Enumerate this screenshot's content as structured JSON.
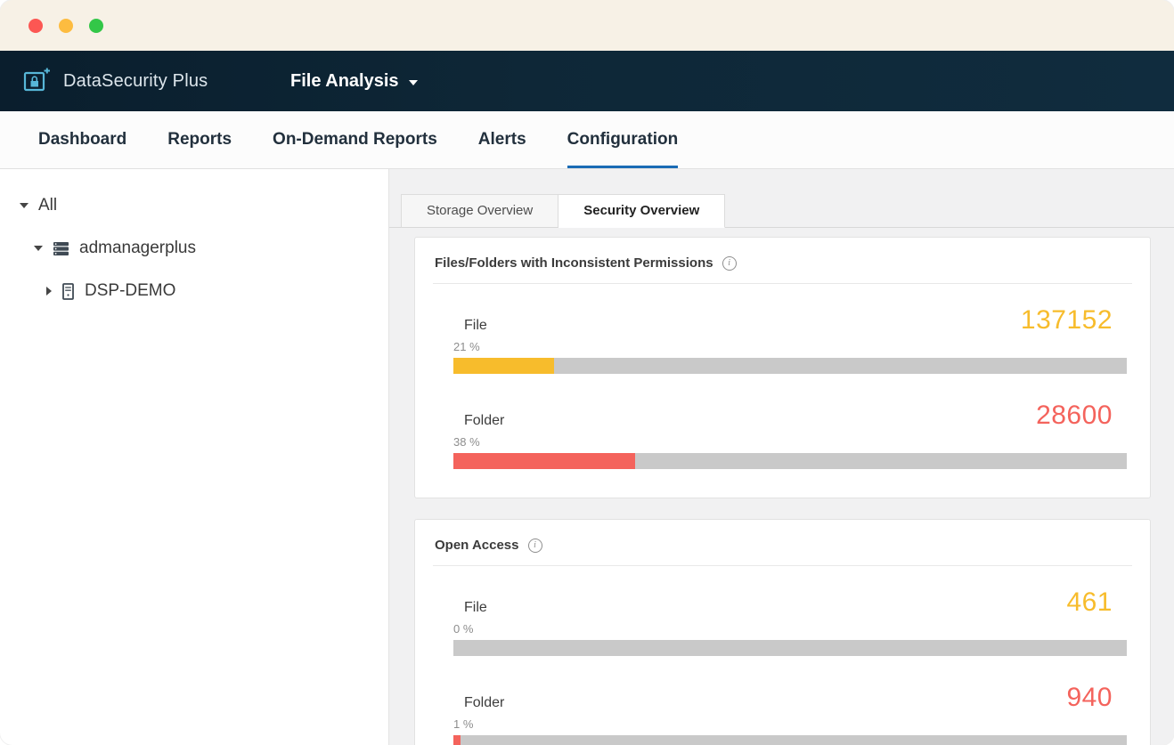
{
  "window": {
    "traffic_lights": {
      "close": "#fc5753",
      "minimize": "#fdbc40",
      "zoom": "#33c748"
    }
  },
  "header": {
    "brand": "DataSecurity Plus",
    "module_selector": "File Analysis"
  },
  "nav": {
    "items": [
      {
        "label": "Dashboard"
      },
      {
        "label": "Reports"
      },
      {
        "label": "On-Demand Reports"
      },
      {
        "label": "Alerts"
      },
      {
        "label": "Configuration"
      }
    ],
    "active": "Configuration",
    "active_underline_color": "#1a6bb5"
  },
  "sidebar": {
    "tree": [
      {
        "label": "All",
        "expanded": true
      },
      {
        "label": "admanagerplus",
        "expanded": true,
        "icon": "server-stack-icon"
      },
      {
        "label": "DSP-DEMO",
        "expanded": false,
        "icon": "server-tower-icon"
      }
    ]
  },
  "content": {
    "tabs": [
      {
        "label": "Storage Overview"
      },
      {
        "label": "Security Overview"
      }
    ],
    "active_tab": "Security Overview",
    "cards": [
      {
        "title": "Files/Folders with Inconsistent Permissions",
        "rows": [
          {
            "label": "File",
            "value": "137152",
            "percent": "21 %",
            "bar_pct": 15,
            "color": "#f7bc2c"
          },
          {
            "label": "Folder",
            "value": "28600",
            "percent": "38 %",
            "bar_pct": 27,
            "color": "#f4635c"
          }
        ]
      },
      {
        "title": "Open Access",
        "rows": [
          {
            "label": "File",
            "value": "461",
            "percent": "0 %",
            "bar_pct": 0,
            "color": "#f7bc2c"
          },
          {
            "label": "Folder",
            "value": "940",
            "percent": "1 %",
            "bar_pct": 1,
            "color": "#f4635c"
          }
        ]
      }
    ]
  },
  "colors": {
    "bar_track": "#c9c9c9",
    "file_accent": "#f7bc2c",
    "folder_accent": "#f4635c",
    "header_bg": "#0e2737"
  }
}
